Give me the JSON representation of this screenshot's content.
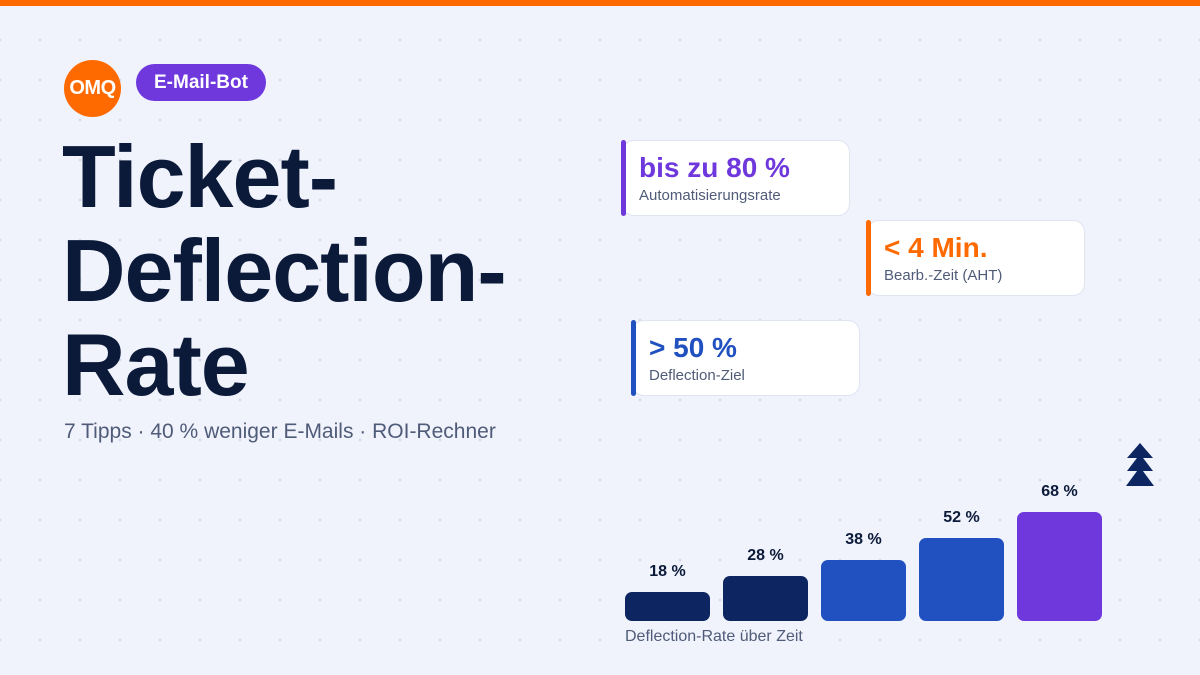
{
  "brand": {
    "logo": "OMQ",
    "badge": "E-Mail-Bot",
    "accent": "#ff6a00",
    "purple": "#6e38dc"
  },
  "headline": {
    "line1": "Ticket-",
    "line2": "Deflection-",
    "line3": "Rate"
  },
  "subtitle": "7 Tipps · 40 % weniger E-Mails · ROI-Rechner",
  "cards": [
    {
      "value": "bis zu 80 %",
      "label": "Automatisierungsrate",
      "color": "#6e38dc"
    },
    {
      "value": "< 4 Min.",
      "label": "Bearb.-Zeit (AHT)",
      "color": "#ff6a00"
    },
    {
      "value": "> 50 %",
      "label": "Deflection-Ziel",
      "color": "#2150c0"
    }
  ],
  "chart": {
    "caption": "Deflection-Rate über Zeit",
    "values": [
      18,
      28,
      38,
      52,
      68
    ],
    "labels": [
      "18 %",
      "28 %",
      "38 %",
      "52 %",
      "68 %"
    ],
    "colors": [
      "#0d2560",
      "#0d2560",
      "#2150c0",
      "#2150c0",
      "#6e38dc"
    ]
  },
  "icons": {
    "tree": "tree-icon"
  }
}
